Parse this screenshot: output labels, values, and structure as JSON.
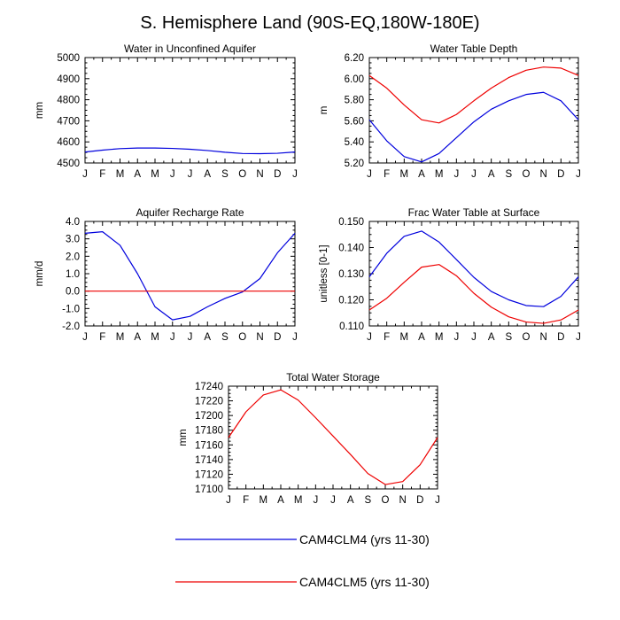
{
  "figure": {
    "title": "S. Hemisphere Land (90S-EQ,180W-180E)",
    "legend": [
      {
        "label": "CAM4CLM4 (yrs 11-30)",
        "color": "#0000dd"
      },
      {
        "label": "CAM4CLM5 (yrs 11-30)",
        "color": "#ee0000"
      }
    ]
  },
  "chart_data": [
    {
      "type": "line",
      "title": "Water in Unconfined Aquifer",
      "xlabel": "",
      "ylabel": "mm",
      "categories": [
        "J",
        "F",
        "M",
        "A",
        "M",
        "J",
        "J",
        "A",
        "S",
        "O",
        "N",
        "D",
        "J"
      ],
      "ylim": [
        4500,
        5000
      ],
      "yticks": [
        4500,
        4600,
        4700,
        4800,
        4900,
        5000
      ],
      "ytick_labels": [
        "4500",
        "4600",
        "4700",
        "4800",
        "4900",
        "5000"
      ],
      "series": [
        {
          "name": "CAM4CLM4 (yrs 11-30)",
          "color": "#0000dd",
          "values": [
            4552,
            4561,
            4568,
            4571,
            4571,
            4569,
            4565,
            4559,
            4551,
            4545,
            4544,
            4546,
            4552
          ]
        }
      ]
    },
    {
      "type": "line",
      "title": "Water Table Depth",
      "xlabel": "",
      "ylabel": "m",
      "categories": [
        "J",
        "F",
        "M",
        "A",
        "M",
        "J",
        "J",
        "A",
        "S",
        "O",
        "N",
        "D",
        "J"
      ],
      "ylim": [
        5.2,
        6.2
      ],
      "yticks": [
        5.2,
        5.4,
        5.6,
        5.8,
        6.0,
        6.2
      ],
      "ytick_labels": [
        "5.20",
        "5.40",
        "5.60",
        "5.80",
        "6.00",
        "6.20"
      ],
      "series": [
        {
          "name": "CAM4CLM4 (yrs 11-30)",
          "color": "#0000dd",
          "values": [
            5.61,
            5.41,
            5.26,
            5.21,
            5.29,
            5.44,
            5.59,
            5.71,
            5.79,
            5.85,
            5.87,
            5.79,
            5.61
          ]
        },
        {
          "name": "CAM4CLM5 (yrs 11-30)",
          "color": "#ee0000",
          "values": [
            6.03,
            5.91,
            5.75,
            5.61,
            5.58,
            5.66,
            5.79,
            5.91,
            6.01,
            6.08,
            6.11,
            6.1,
            6.03
          ]
        }
      ]
    },
    {
      "type": "line",
      "title": "Aquifer Recharge Rate",
      "xlabel": "",
      "ylabel": "mm/d",
      "categories": [
        "J",
        "F",
        "M",
        "A",
        "M",
        "J",
        "J",
        "A",
        "S",
        "O",
        "N",
        "D",
        "J"
      ],
      "ylim": [
        -2.0,
        4.0
      ],
      "yticks": [
        -2,
        -1,
        0,
        1,
        2,
        3,
        4
      ],
      "ytick_labels": [
        "-2.0",
        "-1.0",
        "0.0",
        "1.0",
        "2.0",
        "3.0",
        "4.0"
      ],
      "series": [
        {
          "name": "CAM4CLM4 (yrs 11-30)",
          "color": "#0000dd",
          "values": [
            3.32,
            3.41,
            2.63,
            1.0,
            -0.9,
            -1.65,
            -1.45,
            -0.9,
            -0.42,
            -0.05,
            0.72,
            2.2,
            3.32
          ]
        },
        {
          "name": "CAM4CLM5 (yrs 11-30)",
          "color": "#ee0000",
          "values": [
            0,
            0,
            0,
            0,
            0,
            0,
            0,
            0,
            0,
            0,
            0,
            0,
            0
          ]
        }
      ]
    },
    {
      "type": "line",
      "title": "Frac Water Table at Surface",
      "xlabel": "",
      "ylabel": "unitless [0-1]",
      "categories": [
        "J",
        "F",
        "M",
        "A",
        "M",
        "J",
        "J",
        "A",
        "S",
        "O",
        "N",
        "D",
        "J"
      ],
      "ylim": [
        0.11,
        0.15
      ],
      "yticks": [
        0.11,
        0.12,
        0.13,
        0.14,
        0.15
      ],
      "ytick_labels": [
        "0.110",
        "0.120",
        "0.130",
        "0.140",
        "0.150"
      ],
      "series": [
        {
          "name": "CAM4CLM4 (yrs 11-30)",
          "color": "#0000dd",
          "values": [
            0.1288,
            0.1378,
            0.1443,
            0.1463,
            0.1421,
            0.1354,
            0.1286,
            0.1232,
            0.12,
            0.1178,
            0.1174,
            0.1213,
            0.1288
          ]
        },
        {
          "name": "CAM4CLM5 (yrs 11-30)",
          "color": "#ee0000",
          "values": [
            0.1161,
            0.1206,
            0.1267,
            0.1325,
            0.1335,
            0.1292,
            0.1225,
            0.1172,
            0.1135,
            0.1115,
            0.111,
            0.1123,
            0.1161
          ]
        }
      ]
    },
    {
      "type": "line",
      "title": "Total Water Storage",
      "xlabel": "",
      "ylabel": "mm",
      "categories": [
        "J",
        "F",
        "M",
        "A",
        "M",
        "J",
        "J",
        "A",
        "S",
        "O",
        "N",
        "D",
        "J"
      ],
      "ylim": [
        17100,
        17240
      ],
      "yticks": [
        17100,
        17120,
        17140,
        17160,
        17180,
        17200,
        17220,
        17240
      ],
      "ytick_labels": [
        "17100",
        "17120",
        "17140",
        "17160",
        "17180",
        "17200",
        "17220",
        "17240"
      ],
      "series": [
        {
          "name": "CAM4CLM5 (yrs 11-30)",
          "color": "#ee0000",
          "values": [
            17170,
            17205,
            17228,
            17235,
            17221,
            17197,
            17172,
            17147,
            17121,
            17106,
            17110,
            17133,
            17170
          ]
        }
      ]
    }
  ]
}
